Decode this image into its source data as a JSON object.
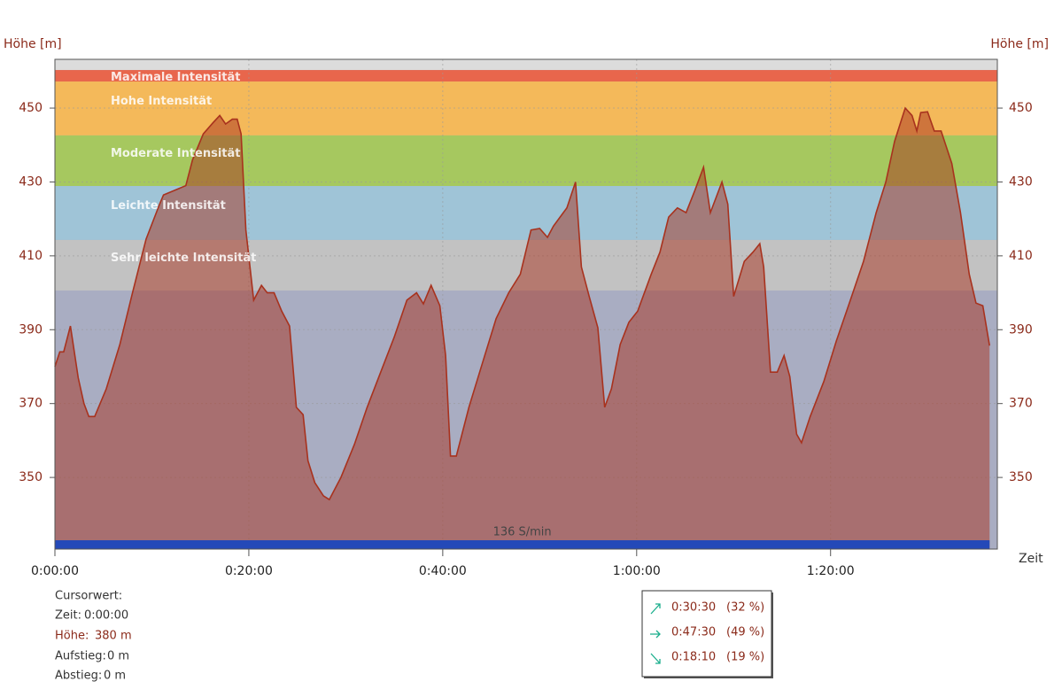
{
  "chart_data": {
    "type": "area",
    "y_label": "Höhe [m]",
    "x_label": "Zeit",
    "x": [
      0,
      0.5,
      0.9,
      1.6,
      2.4,
      3.0,
      3.5,
      4.1,
      5.3,
      6.7,
      8.0,
      9.4,
      10.8,
      11.2,
      12.6,
      13.5,
      14.2,
      15.3,
      16.3,
      17.0,
      17.6,
      18.3,
      18.8,
      19.2,
      19.7,
      20.5,
      21.3,
      21.9,
      22.6,
      23.4,
      24.2,
      24.9,
      25.6,
      26.1,
      26.8,
      27.7,
      28.3,
      29.5,
      30.9,
      32.2,
      33.6,
      35.0,
      36.3,
      37.3,
      38.0,
      38.8,
      39.7,
      40.3,
      40.8,
      41.4,
      42.7,
      44.1,
      45.5,
      46.8,
      48.0,
      49.1,
      50.0,
      50.8,
      51.4,
      52.8,
      53.7,
      54.3,
      55.1,
      56.0,
      56.7,
      57.4,
      58.3,
      59.2,
      60.1,
      61.5,
      62.4,
      63.3,
      64.2,
      65.1,
      66.0,
      66.9,
      67.6,
      68.8,
      69.4,
      70.0,
      71.1,
      72.0,
      72.7,
      73.1,
      73.8,
      74.5,
      75.2,
      75.8,
      76.5,
      77.0,
      77.9,
      79.3,
      80.6,
      82.0,
      83.4,
      84.7,
      85.7,
      86.6,
      87.7,
      88.4,
      88.9,
      89.3,
      90.0,
      90.7,
      91.4,
      92.5,
      93.4,
      94.3,
      95.0,
      95.7,
      96.4
    ],
    "values": [
      380,
      384,
      384,
      391,
      377,
      370,
      366.5,
      366.5,
      374,
      386,
      400,
      414.5,
      424,
      426.5,
      428,
      429,
      436,
      443,
      446,
      448,
      445.7,
      447,
      447,
      443,
      417,
      398,
      402,
      400,
      400,
      395,
      391,
      369,
      367,
      354.5,
      348.6,
      345,
      344,
      350,
      359,
      369,
      378.5,
      388,
      398,
      400,
      397,
      402,
      396.5,
      383,
      355.8,
      355.8,
      369,
      381,
      393,
      400,
      405,
      417,
      417.4,
      415,
      418,
      423,
      430,
      407,
      399,
      390.5,
      369,
      374,
      386,
      392,
      395,
      405,
      411,
      420.5,
      423,
      421.7,
      427.7,
      434,
      421.7,
      430,
      424,
      399,
      408.5,
      411,
      413.3,
      407,
      378.5,
      378.5,
      383,
      377.3,
      361.7,
      359.4,
      366.5,
      376,
      387,
      397.7,
      408.5,
      421.7,
      430,
      441,
      450,
      448,
      443.8,
      448.8,
      449,
      443.8,
      443.8,
      435,
      421.7,
      405,
      397.2,
      396.5,
      385.7
    ],
    "color": "#a8321e",
    "xlim": [
      0,
      97.2
    ],
    "ylim": [
      330.6,
      463.2
    ],
    "xticks": [
      {
        "value": 0,
        "label": "0:00:00"
      },
      {
        "value": 20,
        "label": "0:20:00"
      },
      {
        "value": 40,
        "label": "0:40:00"
      },
      {
        "value": 60,
        "label": "1:00:00"
      },
      {
        "value": 80,
        "label": "1:20:00"
      }
    ],
    "yticks": [
      350,
      370,
      390,
      410,
      430,
      450
    ],
    "grid": true,
    "zones": [
      {
        "name": "Maximale Intensität",
        "from": 457.2,
        "to": 460.3,
        "color": "#e8664c"
      },
      {
        "name": "Hohe Intensität",
        "from": 442.6,
        "to": 457.2,
        "color": "#f4b95a"
      },
      {
        "name": "Moderate Intensität",
        "from": 428.9,
        "to": 442.6,
        "color": "#a6c85f"
      },
      {
        "name": "Leichte Intensität",
        "from": 414.3,
        "to": 428.9,
        "color": "#9fc4d7"
      },
      {
        "name": "Sehr leichte Intensität",
        "from": 400.6,
        "to": 414.3,
        "color": "#c2c2c2"
      }
    ],
    "cadence_label": "136 S/min"
  },
  "cursor": {
    "title": "Cursorwert:",
    "rows": [
      {
        "label": "Zeit:",
        "value": "0:00:00"
      },
      {
        "label": "Höhe:",
        "value": "380 m"
      },
      {
        "label": "Aufstieg:",
        "value": "0 m"
      },
      {
        "label": "Abstieg:",
        "value": "0 m"
      }
    ]
  },
  "summary": [
    {
      "time": "0:30:30",
      "percent": "(32 %)"
    },
    {
      "time": "0:47:30",
      "percent": "(49 %)"
    },
    {
      "time": "0:18:10",
      "percent": "(19 %)"
    }
  ]
}
